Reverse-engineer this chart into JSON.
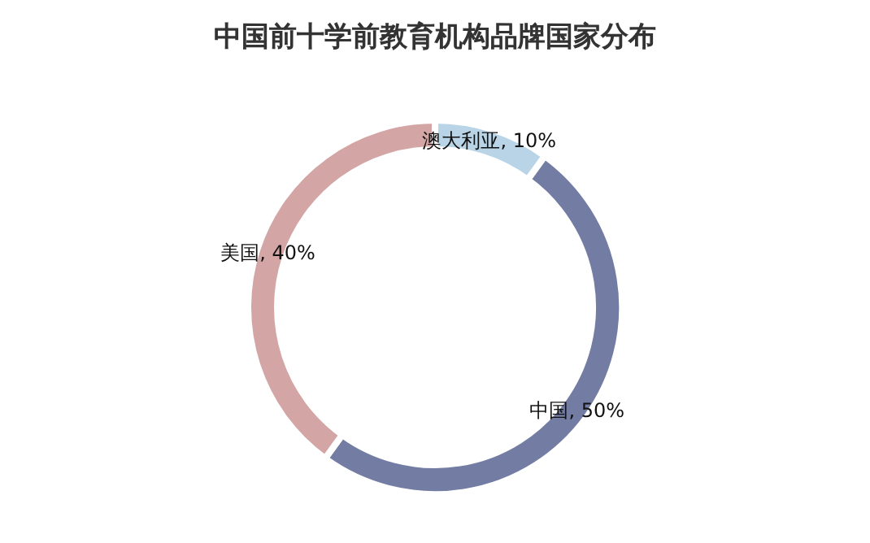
{
  "chart_data": {
    "type": "donut",
    "title": "中国前十学前教育机构品牌国家分布",
    "categories": [
      "澳大利亚",
      "中国",
      "美国"
    ],
    "values": [
      10,
      50,
      40
    ],
    "value_labels": [
      "10%",
      "50%",
      "40%"
    ],
    "colors": [
      "#b8d4e6",
      "#737ca3",
      "#d4a5a5"
    ],
    "legend": false
  }
}
